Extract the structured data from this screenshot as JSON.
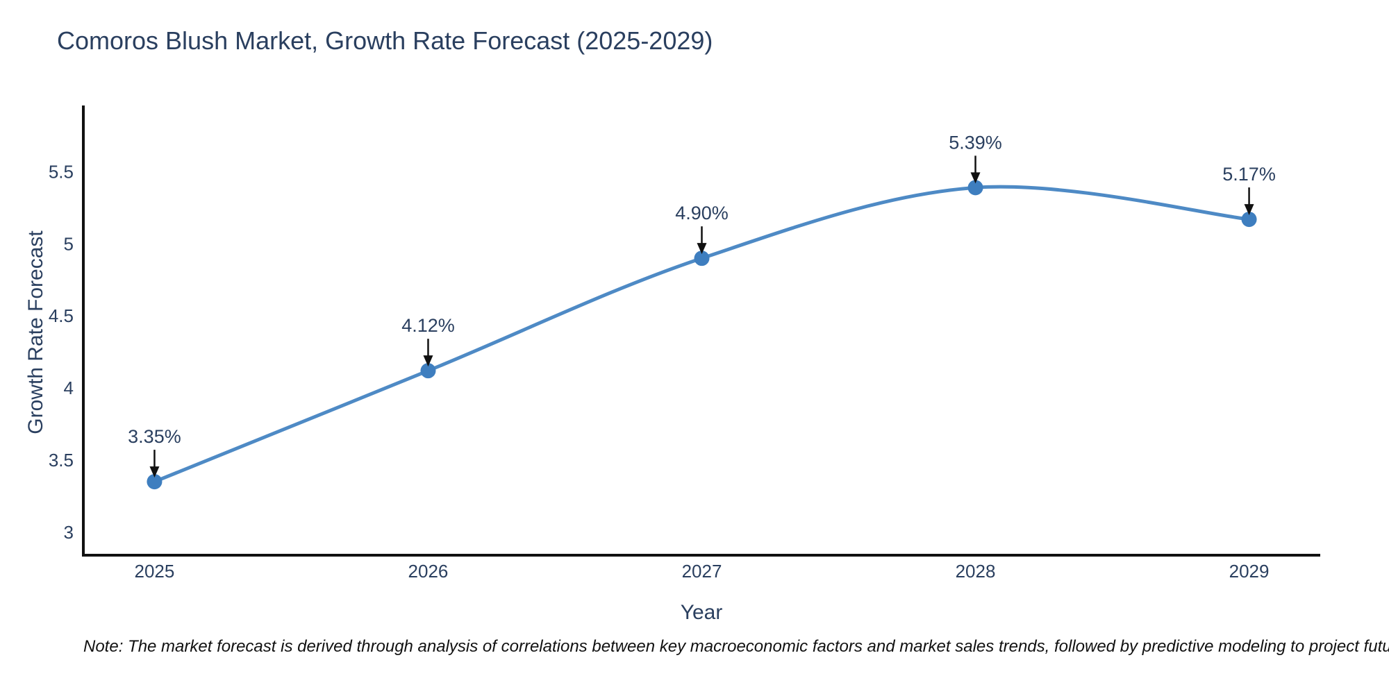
{
  "chart_data": {
    "type": "line",
    "title": "Comoros Blush Market, Growth Rate Forecast (2025-2029)",
    "xlabel": "Year",
    "ylabel": "Growth Rate Forecast",
    "x": [
      2025,
      2026,
      2027,
      2028,
      2029
    ],
    "x_tick_labels": [
      "2025",
      "2026",
      "2027",
      "2028",
      "2029"
    ],
    "values": [
      3.35,
      4.12,
      4.9,
      5.39,
      5.17
    ],
    "data_labels": [
      "3.35%",
      "4.12%",
      "4.90%",
      "5.39%",
      "5.17%"
    ],
    "y_ticks": [
      3,
      3.5,
      4,
      4.5,
      5,
      5.5
    ],
    "y_tick_labels": [
      "3",
      "3.5",
      "4",
      "4.5",
      "5",
      "5.5"
    ],
    "xlim": [
      2024.74,
      2029.26
    ],
    "ylim": [
      2.84,
      5.96
    ],
    "grid": false,
    "legend_position": "none",
    "annotation_style": "value label above point with downward arrow",
    "colors": {
      "line": "#4e8ac5",
      "marker": "#3e7ebf",
      "axis": "#111111",
      "tick_text": "#2a3f5f",
      "annotation_text": "#2a3f5f",
      "annotation_arrow": "#111111"
    }
  },
  "note": {
    "text": "Note: The market forecast is derived through analysis of correlations between key macroeconomic factors and market sales trends, followed by predictive modeling to project future sales"
  }
}
